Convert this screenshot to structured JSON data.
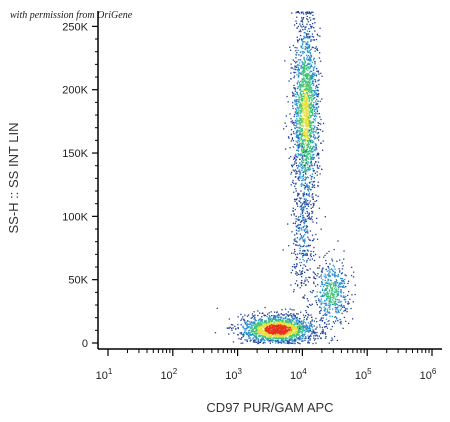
{
  "watermark": "with permission from OriGene",
  "colors": {
    "axis": "#000000",
    "density_low": "#1f3f9a",
    "density_mid_low": "#2a8fd0",
    "density_mid": "#3fc47a",
    "density_high": "#e6e23a",
    "density_peak": "#e8321e"
  },
  "chart_data": {
    "type": "scatter",
    "subtype": "flow-cytometry density dot plot",
    "xlabel": "CD97 PUR/GAM APC",
    "ylabel": "SS-H :: SS INT LIN",
    "x_scale": "log",
    "xlim": [
      10,
      1000000
    ],
    "ylim": [
      0,
      262144
    ],
    "x_ticks": [
      {
        "value": 10,
        "base": "10",
        "exp": "1"
      },
      {
        "value": 100,
        "base": "10",
        "exp": "2"
      },
      {
        "value": 1000,
        "base": "10",
        "exp": "3"
      },
      {
        "value": 10000,
        "base": "10",
        "exp": "4"
      },
      {
        "value": 100000,
        "base": "10",
        "exp": "5"
      },
      {
        "value": 1000000,
        "base": "10",
        "exp": "6"
      }
    ],
    "y_ticks": [
      {
        "value": 0,
        "label": "0"
      },
      {
        "value": 50000,
        "label": "50K"
      },
      {
        "value": 100000,
        "label": "100K"
      },
      {
        "value": 150000,
        "label": "150K"
      },
      {
        "value": 200000,
        "label": "200K"
      },
      {
        "value": 250000,
        "label": "250K"
      }
    ],
    "populations": [
      {
        "x_center": 4000,
        "x_log_spread": 0.28,
        "y_center": 11000,
        "y_spread": 5500,
        "points": 1700,
        "peak_density": 1.0
      },
      {
        "x_center": 11000,
        "x_log_spread": 0.1,
        "y_center": 180000,
        "y_spread": 38000,
        "points": 1800,
        "peak_density": 0.65
      },
      {
        "x_center": 28000,
        "x_log_spread": 0.14,
        "y_center": 40000,
        "y_spread": 14000,
        "points": 500,
        "peak_density": 0.45
      },
      {
        "x_center": 10000,
        "x_log_spread": 0.09,
        "y_center": 85000,
        "y_spread": 30000,
        "points": 320,
        "peak_density": 0.2
      }
    ]
  }
}
